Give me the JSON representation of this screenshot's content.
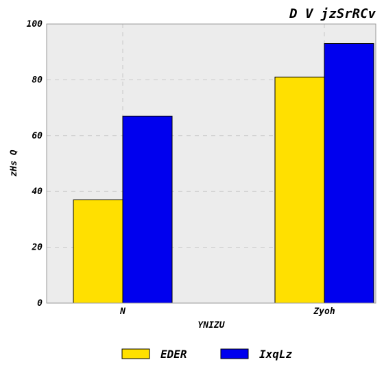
{
  "chart_data": {
    "type": "bar",
    "title": "D V jzSrRCv",
    "xlabel": "YNIZU",
    "ylabel": "zHs Q",
    "categories": [
      "N",
      "Zyoh"
    ],
    "series": [
      {
        "name": "EDER",
        "values": [
          37,
          81
        ],
        "color": "#ffe000"
      },
      {
        "name": "IxqLz",
        "values": [
          67,
          93
        ],
        "color": "#0000ee"
      }
    ],
    "ylim": [
      0,
      100
    ],
    "yticks": [
      "0",
      "20",
      "40",
      "60",
      "80",
      "100"
    ],
    "grid": true,
    "legend_position": "bottom-center",
    "background": "#ececec"
  }
}
